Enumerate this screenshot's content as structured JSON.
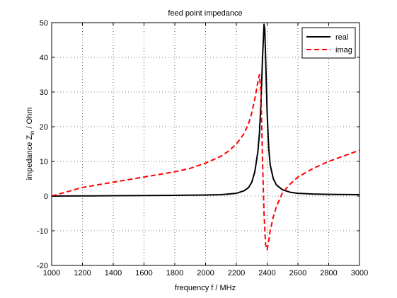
{
  "chart_data": {
    "type": "line",
    "title": "feed point impedance",
    "xlabel": "frequency f / MHz",
    "ylabel_main": "impedance Z",
    "ylabel_sub": "in",
    "ylabel_tail": "  / Ohm",
    "xlim": [
      1000,
      3000
    ],
    "ylim": [
      -20,
      50
    ],
    "xticks": [
      1000,
      1200,
      1400,
      1600,
      1800,
      2000,
      2200,
      2400,
      2600,
      2800,
      3000
    ],
    "yticks": [
      -20,
      -10,
      0,
      10,
      20,
      30,
      40,
      50
    ],
    "grid": true,
    "legend_position": "top-right",
    "series": [
      {
        "name": "real",
        "color": "#000000",
        "style": "solid",
        "x": [
          1000,
          1200,
          1400,
          1600,
          1800,
          2000,
          2100,
          2200,
          2250,
          2280,
          2300,
          2320,
          2340,
          2350,
          2360,
          2370,
          2380,
          2385,
          2390,
          2400,
          2410,
          2420,
          2440,
          2460,
          2500,
          2550,
          2600,
          2700,
          2800,
          3000
        ],
        "y": [
          0.0,
          0.05,
          0.1,
          0.15,
          0.2,
          0.3,
          0.4,
          0.8,
          1.5,
          2.5,
          4.0,
          7.0,
          13.0,
          18.0,
          27.0,
          40.0,
          49.5,
          48.0,
          40.0,
          24.0,
          14.0,
          9.0,
          5.0,
          3.2,
          1.8,
          1.1,
          0.8,
          0.6,
          0.5,
          0.4
        ]
      },
      {
        "name": "imag",
        "color": "#ff0000",
        "style": "dashed",
        "x": [
          1000,
          1200,
          1400,
          1600,
          1800,
          1900,
          2000,
          2100,
          2150,
          2200,
          2250,
          2280,
          2300,
          2320,
          2340,
          2350,
          2360,
          2370,
          2380,
          2390,
          2400,
          2410,
          2420,
          2440,
          2460,
          2500,
          2550,
          2600,
          2700,
          2800,
          3000
        ],
        "y": [
          0.0,
          2.5,
          4.0,
          5.5,
          7.0,
          8.0,
          9.5,
          11.5,
          13.0,
          15.0,
          18.0,
          21.0,
          24.0,
          28.0,
          33.0,
          35.0,
          30.0,
          10.0,
          -5.0,
          -14.0,
          -15.5,
          -13.0,
          -10.0,
          -6.0,
          -3.0,
          1.0,
          3.5,
          5.5,
          8.0,
          10.0,
          13.2
        ]
      }
    ]
  }
}
